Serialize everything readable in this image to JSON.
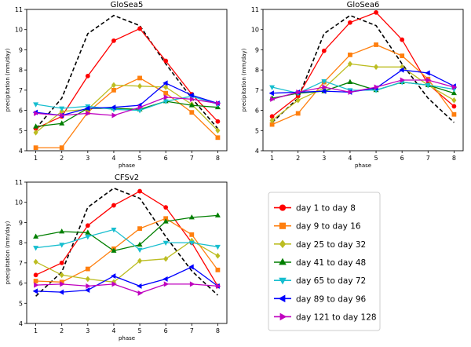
{
  "chart_data": [
    {
      "type": "line",
      "title": "GloSea5",
      "xlabel": "phase",
      "ylabel": "precipitation (mm/day)",
      "x": [
        1,
        2,
        3,
        4,
        5,
        6,
        7,
        8
      ],
      "ylim": [
        4,
        11
      ],
      "yticks": [
        4,
        5,
        6,
        7,
        8,
        9,
        10,
        11
      ],
      "grid": false,
      "series": [
        {
          "ref": "obs",
          "values": [
            5.1,
            6.6,
            9.8,
            10.7,
            10.2,
            8.3,
            6.6,
            5.1
          ]
        },
        {
          "ref": "d1",
          "values": [
            5.1,
            5.7,
            7.7,
            9.45,
            10.05,
            8.45,
            6.8,
            5.45
          ]
        },
        {
          "ref": "d9",
          "values": [
            4.15,
            4.15,
            5.9,
            7.0,
            7.6,
            6.85,
            5.9,
            4.65
          ]
        },
        {
          "ref": "d25",
          "values": [
            4.9,
            5.95,
            6.05,
            7.25,
            7.2,
            7.15,
            6.3,
            5.0
          ]
        },
        {
          "ref": "d41",
          "values": [
            5.2,
            5.35,
            6.1,
            6.1,
            6.05,
            6.45,
            6.25,
            6.15
          ]
        },
        {
          "ref": "d65",
          "values": [
            6.3,
            6.1,
            6.2,
            6.05,
            6.0,
            6.45,
            6.7,
            6.3
          ]
        },
        {
          "ref": "d89",
          "values": [
            5.9,
            5.75,
            6.1,
            6.15,
            6.25,
            7.35,
            6.75,
            6.35
          ]
        },
        {
          "ref": "d121",
          "values": [
            5.85,
            5.75,
            5.85,
            5.75,
            6.15,
            6.65,
            6.55,
            6.35
          ]
        }
      ]
    },
    {
      "type": "line",
      "title": "GloSea6",
      "xlabel": "phase",
      "ylabel": "precipitation (mm/day)",
      "x": [
        1,
        2,
        3,
        4,
        5,
        6,
        7,
        8
      ],
      "ylim": [
        4,
        11
      ],
      "yticks": [
        4,
        5,
        6,
        7,
        8,
        9,
        10,
        11
      ],
      "grid": false,
      "series": [
        {
          "ref": "obs",
          "values": [
            5.4,
            6.6,
            9.8,
            10.7,
            10.2,
            8.3,
            6.6,
            5.4
          ]
        },
        {
          "ref": "d1",
          "values": [
            5.7,
            6.7,
            8.95,
            10.35,
            10.85,
            9.5,
            7.3,
            6.2
          ]
        },
        {
          "ref": "d9",
          "values": [
            5.3,
            5.85,
            7.4,
            8.75,
            9.25,
            8.7,
            7.55,
            5.8
          ]
        },
        {
          "ref": "d25",
          "values": [
            5.5,
            6.5,
            7.1,
            8.3,
            8.15,
            8.15,
            7.25,
            6.5
          ]
        },
        {
          "ref": "d41",
          "values": [
            6.6,
            6.85,
            6.95,
            7.4,
            7.0,
            7.4,
            7.25,
            6.85
          ]
        },
        {
          "ref": "d65",
          "values": [
            7.15,
            6.85,
            7.45,
            7.0,
            7.0,
            7.4,
            7.25,
            7.05
          ]
        },
        {
          "ref": "d89",
          "values": [
            6.85,
            6.9,
            6.95,
            6.9,
            7.1,
            8.0,
            7.85,
            7.2
          ]
        },
        {
          "ref": "d121",
          "values": [
            6.55,
            6.9,
            7.15,
            6.9,
            7.15,
            7.5,
            7.5,
            7.15
          ]
        }
      ]
    },
    {
      "type": "line",
      "title": "CFSv2",
      "xlabel": "phase",
      "ylabel": "precipitation (mm/day)",
      "x": [
        1,
        2,
        3,
        4,
        5,
        6,
        7,
        8
      ],
      "ylim": [
        4,
        11
      ],
      "yticks": [
        4,
        5,
        6,
        7,
        8,
        9,
        10,
        11
      ],
      "grid": false,
      "series": [
        {
          "ref": "obs",
          "values": [
            5.35,
            6.55,
            9.75,
            10.7,
            10.2,
            8.3,
            6.6,
            5.4
          ]
        },
        {
          "ref": "d1",
          "values": [
            6.4,
            7.0,
            8.85,
            9.85,
            10.55,
            9.75,
            8.0,
            5.85
          ]
        },
        {
          "ref": "d9",
          "values": [
            6.1,
            6.05,
            6.7,
            7.7,
            8.7,
            9.2,
            8.4,
            6.65
          ]
        },
        {
          "ref": "d25",
          "values": [
            7.05,
            6.4,
            6.2,
            6.05,
            7.1,
            7.2,
            8.1,
            7.35
          ]
        },
        {
          "ref": "d41",
          "values": [
            8.3,
            8.55,
            8.5,
            7.6,
            7.9,
            9.05,
            9.25,
            9.35
          ]
        },
        {
          "ref": "d65",
          "values": [
            7.75,
            7.9,
            8.3,
            8.65,
            7.65,
            8.0,
            8.0,
            7.8
          ]
        },
        {
          "ref": "d89",
          "values": [
            5.6,
            5.55,
            5.65,
            6.35,
            5.85,
            6.2,
            6.8,
            5.85
          ]
        },
        {
          "ref": "d121",
          "values": [
            5.9,
            5.95,
            5.85,
            5.95,
            5.5,
            5.95,
            5.95,
            5.85
          ]
        }
      ]
    }
  ],
  "legend": {
    "placement": "right",
    "entries": [
      {
        "ref": "d1",
        "label": "day 1 to day 8"
      },
      {
        "ref": "d9",
        "label": "day 9 to day 16"
      },
      {
        "ref": "d25",
        "label": "day 25 to day 32"
      },
      {
        "ref": "d41",
        "label": "day 41 to day 48"
      },
      {
        "ref": "d65",
        "label": "day 65 to day 72"
      },
      {
        "ref": "d89",
        "label": "day 89 to day 96"
      },
      {
        "ref": "d121",
        "label": "day 121 to day 128"
      }
    ]
  },
  "styles": {
    "obs": {
      "color": "#000000",
      "marker": "none",
      "dash": "5,3"
    },
    "d1": {
      "color": "#ff0000",
      "marker": "circle"
    },
    "d9": {
      "color": "#ff7f0e",
      "marker": "square"
    },
    "d25": {
      "color": "#bcbd22",
      "marker": "diamond"
    },
    "d41": {
      "color": "#007f00",
      "marker": "triangle-up"
    },
    "d65": {
      "color": "#17becf",
      "marker": "triangle-down"
    },
    "d89": {
      "color": "#0000ff",
      "marker": "triangle-left"
    },
    "d121": {
      "color": "#bf00bf",
      "marker": "triangle-right"
    }
  }
}
